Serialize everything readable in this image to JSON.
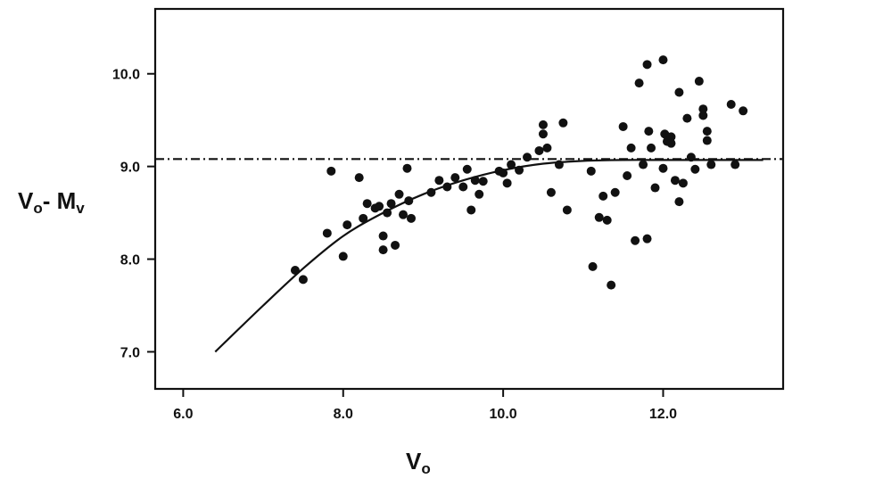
{
  "chart_data": {
    "type": "scatter",
    "xlabel": {
      "main": "V",
      "sub": "o"
    },
    "ylabel": {
      "main1": "V",
      "sub1": "o",
      "mid": "- M",
      "sub2": "v"
    },
    "xlim": [
      5.65,
      13.5
    ],
    "ylim": [
      6.6,
      10.7
    ],
    "x_ticks": [
      {
        "value": 6.0,
        "label": "6.0"
      },
      {
        "value": 8.0,
        "label": "8.0"
      },
      {
        "value": 10.0,
        "label": "10.0"
      },
      {
        "value": 12.0,
        "label": "12.0"
      }
    ],
    "y_ticks": [
      {
        "value": 7.0,
        "label": "7.0"
      },
      {
        "value": 8.0,
        "label": "8.0"
      },
      {
        "value": 9.0,
        "label": "9.0"
      },
      {
        "value": 10.0,
        "label": "10.0"
      }
    ],
    "grid": false,
    "legend": "none",
    "reference_line": {
      "y": 9.08,
      "style": "dash-dot"
    },
    "fit_curve": {
      "x": [
        6.4,
        7.0,
        7.5,
        8.0,
        8.5,
        9.0,
        9.5,
        10.0,
        10.5,
        11.0,
        11.5,
        12.0,
        12.5,
        13.0,
        13.25
      ],
      "y": [
        7.0,
        7.5,
        7.9,
        8.25,
        8.5,
        8.7,
        8.85,
        8.96,
        9.03,
        9.06,
        9.07,
        9.07,
        9.07,
        9.07,
        9.07
      ]
    },
    "points": {
      "x": [
        7.4,
        7.5,
        7.8,
        7.85,
        8.0,
        8.05,
        8.2,
        8.25,
        8.3,
        8.4,
        8.45,
        8.5,
        8.5,
        8.55,
        8.6,
        8.65,
        8.7,
        8.75,
        8.8,
        8.82,
        8.85,
        9.1,
        9.2,
        9.3,
        9.4,
        9.5,
        9.55,
        9.6,
        9.65,
        9.7,
        9.75,
        9.95,
        10.0,
        10.05,
        10.1,
        10.2,
        10.3,
        10.45,
        10.5,
        10.5,
        10.55,
        10.6,
        10.7,
        10.75,
        10.8,
        11.1,
        11.12,
        11.2,
        11.25,
        11.3,
        11.35,
        11.4,
        11.5,
        11.55,
        11.6,
        11.65,
        11.7,
        11.75,
        11.8,
        11.8,
        11.82,
        11.85,
        11.9,
        12.0,
        12.0,
        12.02,
        12.05,
        12.1,
        12.1,
        12.15,
        12.2,
        12.2,
        12.25,
        12.3,
        12.35,
        12.4,
        12.45,
        12.5,
        12.5,
        12.55,
        12.55,
        12.6,
        12.85,
        12.9,
        13.0
      ],
      "y": [
        7.88,
        7.78,
        8.28,
        8.95,
        8.03,
        8.37,
        8.88,
        8.44,
        8.6,
        8.55,
        8.57,
        8.25,
        8.1,
        8.5,
        8.6,
        8.15,
        8.7,
        8.48,
        8.98,
        8.63,
        8.44,
        8.72,
        8.85,
        8.78,
        8.88,
        8.78,
        8.97,
        8.53,
        8.85,
        8.7,
        8.84,
        8.95,
        8.93,
        8.82,
        9.02,
        8.96,
        9.1,
        9.17,
        9.45,
        9.35,
        9.2,
        8.72,
        9.02,
        9.47,
        8.53,
        8.95,
        7.92,
        8.45,
        8.68,
        8.42,
        7.72,
        8.72,
        9.43,
        8.9,
        9.2,
        8.2,
        9.9,
        9.02,
        8.22,
        10.1,
        9.38,
        9.2,
        8.77,
        10.15,
        8.98,
        9.35,
        9.27,
        9.32,
        9.25,
        8.85,
        9.8,
        8.62,
        8.82,
        9.52,
        9.1,
        8.97,
        9.92,
        9.55,
        9.62,
        9.38,
        9.28,
        9.02,
        9.67,
        9.02,
        9.6
      ]
    }
  }
}
